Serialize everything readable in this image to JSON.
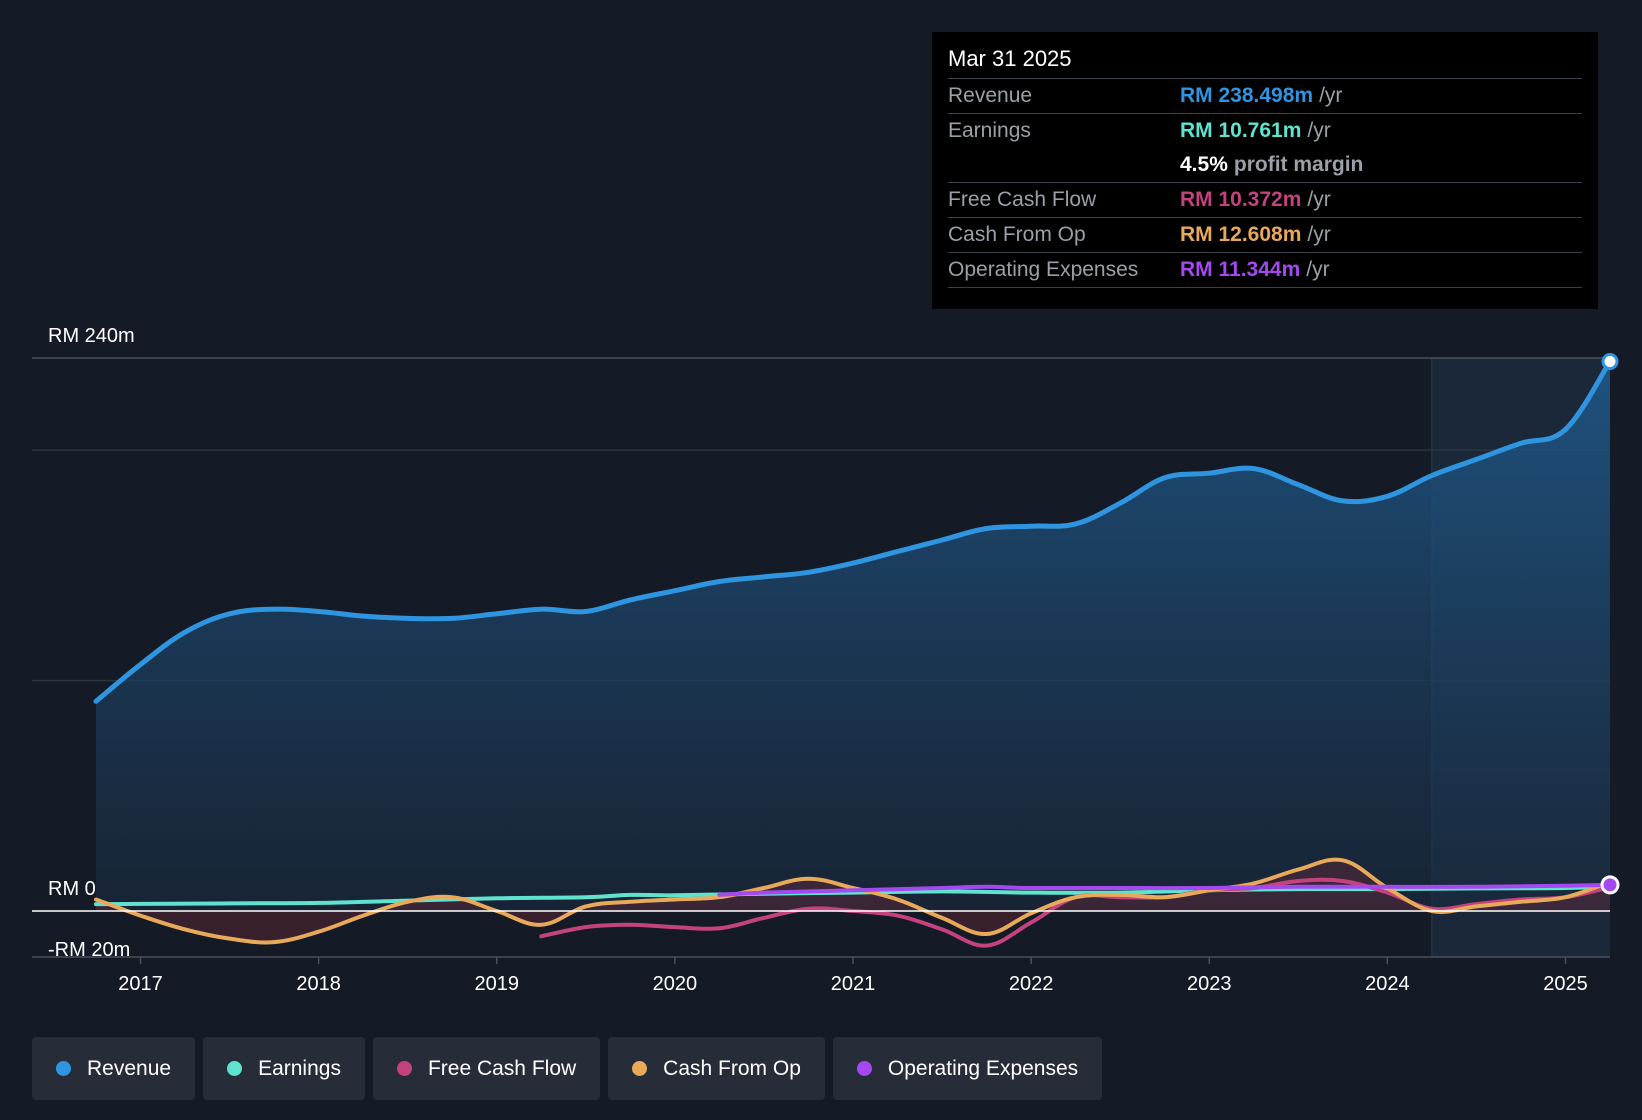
{
  "colors": {
    "revenue": "#2f95e0",
    "earnings": "#5fe3cf",
    "free_cash_flow": "#c4427e",
    "cash_from_op": "#e8a95b",
    "operating_expenses": "#a449f0",
    "background": "#151b26"
  },
  "tooltip": {
    "date": "Mar 31 2025",
    "rows": [
      {
        "label": "Revenue",
        "value": "RM 238.498m",
        "unit": "/yr",
        "color": "#2f95e0"
      },
      {
        "label": "Earnings",
        "value": "RM 10.761m",
        "unit": "/yr",
        "color": "#5fe3cf"
      },
      {
        "label": "",
        "value": "4.5%",
        "unit": "profit margin",
        "color": "#ffffff"
      },
      {
        "label": "Free Cash Flow",
        "value": "RM 10.372m",
        "unit": "/yr",
        "color": "#c4427e"
      },
      {
        "label": "Cash From Op",
        "value": "RM 12.608m",
        "unit": "/yr",
        "color": "#e8a95b"
      },
      {
        "label": "Operating Expenses",
        "value": "RM 11.344m",
        "unit": "/yr",
        "color": "#a449f0"
      }
    ]
  },
  "legend": [
    {
      "label": "Revenue",
      "color": "#2f95e0"
    },
    {
      "label": "Earnings",
      "color": "#5fe3cf"
    },
    {
      "label": "Free Cash Flow",
      "color": "#c4427e"
    },
    {
      "label": "Cash From Op",
      "color": "#e8a95b"
    },
    {
      "label": "Operating Expenses",
      "color": "#a449f0"
    }
  ],
  "chart_data": {
    "type": "line",
    "title": "",
    "xlabel": "",
    "ylabel": "",
    "y_tick_labels": [
      "RM 240m",
      "RM 0",
      "-RM 20m"
    ],
    "y_tick_values": [
      240,
      0,
      -20
    ],
    "ylim": [
      -20,
      240
    ],
    "xlim": [
      2016.75,
      2025.25
    ],
    "x_tick_labels": [
      "2017",
      "2018",
      "2019",
      "2020",
      "2021",
      "2022",
      "2023",
      "2024",
      "2025"
    ],
    "x_tick_values": [
      2017,
      2018,
      2019,
      2020,
      2021,
      2022,
      2023,
      2024,
      2025
    ],
    "grid": true,
    "forecast_shade_start": 2024.25,
    "series": [
      {
        "name": "Revenue",
        "key": "revenue",
        "area": true,
        "x": [
          2016.75,
          2017.0,
          2017.25,
          2017.5,
          2017.75,
          2018.0,
          2018.25,
          2018.5,
          2018.75,
          2019.0,
          2019.25,
          2019.5,
          2019.75,
          2020.0,
          2020.25,
          2020.5,
          2020.75,
          2021.0,
          2021.25,
          2021.5,
          2021.75,
          2022.0,
          2022.25,
          2022.5,
          2022.75,
          2023.0,
          2023.25,
          2023.5,
          2023.75,
          2024.0,
          2024.25,
          2024.5,
          2024.75,
          2025.0,
          2025.25
        ],
        "values": [
          91,
          107,
          121,
          129,
          131,
          130,
          128,
          127,
          127,
          129,
          131,
          130,
          135,
          139,
          143,
          145,
          147,
          151,
          156,
          161,
          166,
          167,
          168,
          177,
          188,
          190,
          192,
          185,
          178,
          180,
          189,
          196,
          203,
          209,
          238.5
        ]
      },
      {
        "name": "Earnings",
        "key": "earnings",
        "area": false,
        "x": [
          2016.75,
          2017.0,
          2017.5,
          2018.0,
          2018.5,
          2019.0,
          2019.5,
          2019.75,
          2020.0,
          2020.5,
          2021.0,
          2021.5,
          2022.0,
          2022.5,
          2023.0,
          2023.5,
          2024.0,
          2024.5,
          2025.0,
          2025.25
        ],
        "values": [
          3.0,
          3.1,
          3.3,
          3.5,
          4.5,
          5.5,
          6.0,
          7.0,
          6.8,
          7.5,
          8.0,
          8.5,
          8.0,
          8.0,
          9.0,
          9.5,
          9.5,
          9.8,
          10.0,
          10.761
        ]
      },
      {
        "name": "Free Cash Flow",
        "key": "free_cash_flow",
        "area": false,
        "x": [
          2019.25,
          2019.5,
          2019.75,
          2020.0,
          2020.25,
          2020.5,
          2020.75,
          2021.0,
          2021.25,
          2021.5,
          2021.75,
          2022.0,
          2022.25,
          2022.5,
          2022.75,
          2023.0,
          2023.25,
          2023.5,
          2023.75,
          2024.0,
          2024.25,
          2024.5,
          2024.75,
          2025.0,
          2025.25
        ],
        "values": [
          -11,
          -7,
          -6,
          -7,
          -7.5,
          -3,
          1,
          0,
          -2,
          -8,
          -15,
          -5,
          6,
          6,
          6,
          9,
          10,
          13,
          13,
          8,
          1,
          3,
          5,
          6,
          10.372
        ]
      },
      {
        "name": "Cash From Op",
        "key": "cash_from_op",
        "area": true,
        "x": [
          2016.75,
          2017.0,
          2017.25,
          2017.5,
          2017.75,
          2018.0,
          2018.25,
          2018.5,
          2018.75,
          2019.0,
          2019.25,
          2019.5,
          2019.75,
          2020.0,
          2020.25,
          2020.5,
          2020.75,
          2021.0,
          2021.25,
          2021.5,
          2021.75,
          2022.0,
          2022.25,
          2022.5,
          2022.75,
          2023.0,
          2023.25,
          2023.5,
          2023.75,
          2024.0,
          2024.25,
          2024.5,
          2024.75,
          2025.0,
          2025.25
        ],
        "values": [
          5,
          -2,
          -8,
          -12,
          -13.5,
          -9,
          -2,
          4,
          6,
          0,
          -6,
          2,
          4,
          5,
          6,
          10,
          14,
          10,
          5,
          -3,
          -10,
          -1,
          6,
          7,
          6,
          9,
          12,
          18,
          22,
          10,
          0,
          2,
          4,
          6,
          12.608
        ]
      },
      {
        "name": "Operating Expenses",
        "key": "operating_expenses",
        "area": false,
        "x": [
          2020.25,
          2020.5,
          2021.0,
          2021.5,
          2021.75,
          2022.0,
          2022.5,
          2023.0,
          2023.5,
          2024.0,
          2024.5,
          2025.0,
          2025.25
        ],
        "values": [
          7.0,
          8.0,
          9.0,
          10.0,
          10.5,
          10.0,
          10.0,
          10.0,
          10.5,
          10.5,
          10.5,
          11.0,
          11.344
        ]
      }
    ]
  }
}
